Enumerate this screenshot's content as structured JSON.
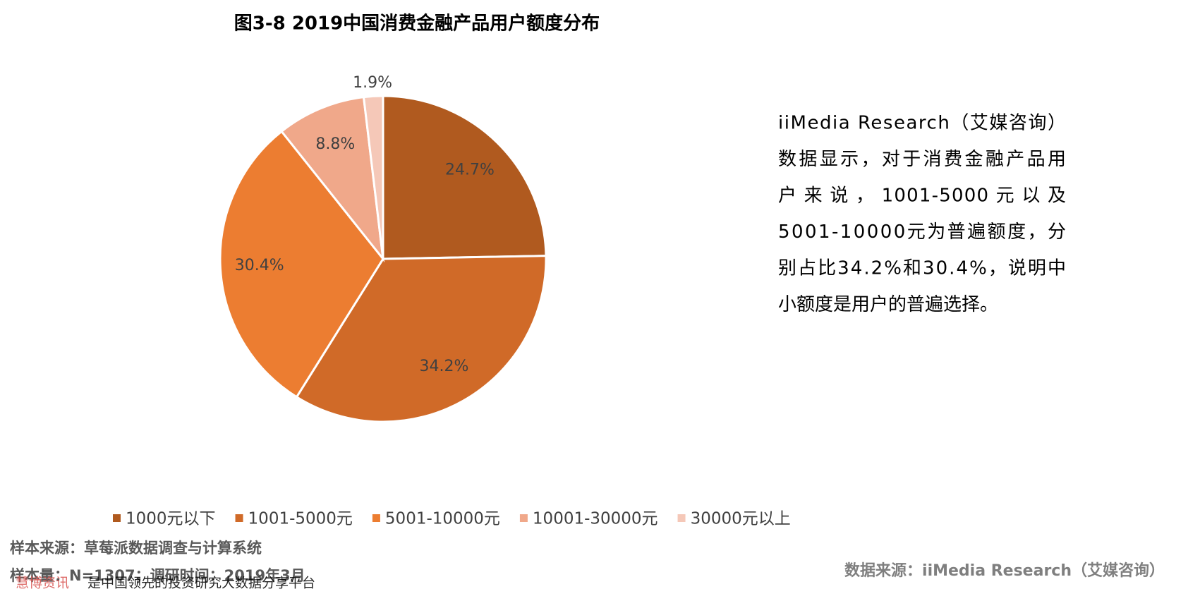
{
  "chart_data": {
    "type": "pie",
    "title": "图3-8 2019中国消费金融产品用户额度分布",
    "categories": [
      "1000元以下",
      "1001-5000元",
      "5001-10000元",
      "10001-30000元",
      "30000元以上"
    ],
    "values": [
      24.7,
      34.2,
      30.4,
      8.8,
      1.9
    ],
    "value_labels": [
      "24.7%",
      "34.2%",
      "30.4%",
      "8.8%",
      "1.9%"
    ],
    "colors": [
      "#b05a1f",
      "#d06a28",
      "#ec7d31",
      "#f0a88a",
      "#f5c8b8"
    ],
    "legend": "bottom",
    "commentary": [
      "iiMedia Research（艾媒咨询）",
      "数据显示，对于消费金融产品用",
      "户 来 说 ， 1001-5000 元 以 及",
      "5001-10000元为普遍额度，分",
      "别占比34.2%和30.4%，说明中",
      "小额度是用户的普遍选择。"
    ],
    "notes": [
      "样本来源：草莓派数据调查与计算系统",
      "样本量：N=1307；调研时间：2019年3月"
    ],
    "source": "数据来源：iiMedia Research（艾媒咨询）",
    "watermark": [
      "慧博资讯",
      "是中国领先的投资研究大数据分享平台"
    ]
  }
}
